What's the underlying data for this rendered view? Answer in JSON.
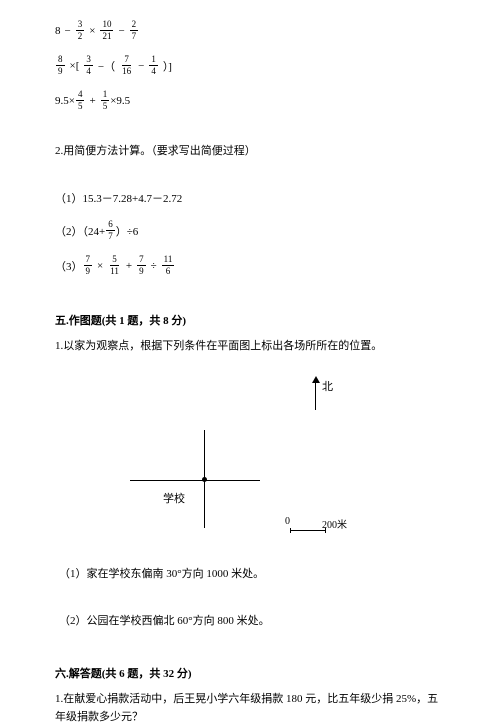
{
  "expressions": {
    "e1a": "8",
    "e1b": "−",
    "f1": {
      "n": "3",
      "d": "2"
    },
    "e1c": "×",
    "f2": {
      "n": "10",
      "d": "21"
    },
    "e1d": "−",
    "f3": {
      "n": "2",
      "d": "7"
    },
    "f4": {
      "n": "8",
      "d": "9"
    },
    "e2a": "×[ ",
    "f5": {
      "n": "3",
      "d": "4"
    },
    "e2b": "−（",
    "f6": {
      "n": "7",
      "d": "16"
    },
    "e2c": "−",
    "f7": {
      "n": "1",
      "d": "4"
    },
    "e2d": "）]",
    "e3a": "9.5×",
    "f8": {
      "n": "4",
      "d": "5"
    },
    "e3b": "+",
    "f9": {
      "n": "1",
      "d": "5"
    },
    "e3c": "×9.5"
  },
  "q2": {
    "title": "2.用简便方法计算。（要求写出简便过程）",
    "i1": "（1）15.3－7.28+4.7－2.72",
    "i2a": "（2）（24+",
    "f10": {
      "n": "6",
      "d": "7"
    },
    "i2b": "）÷6",
    "i3a": "（3）",
    "f11": {
      "n": "7",
      "d": "9"
    },
    "i3b": "×",
    "f12": {
      "n": "5",
      "d": "11"
    },
    "i3c": "+",
    "f13": {
      "n": "7",
      "d": "9"
    },
    "i3d": "÷",
    "f14": {
      "n": "11",
      "d": "6"
    }
  },
  "sec5": {
    "title": "五.作图题(共 1 题，共 8 分)",
    "q1": "1.以家为观察点，根据下列条件在平面图上标出各场所所在的位置。",
    "north": "北",
    "school": "学校",
    "scale0": "0",
    "scale200": "200米",
    "sub1": "（1）家在学校东偏南 30°方向 1000 米处。",
    "sub2": "（2）公园在学校西偏北 60°方向 800 米处。"
  },
  "sec6": {
    "title": "六.解答题(共 6 题，共 32 分)",
    "q1": "1.在献爱心捐款活动中，后王晃小学六年级捐款 180 元，比五年级少捐 25%，五年级捐款多少元？"
  },
  "colors": {
    "text": "#000000",
    "bg": "#ffffff"
  },
  "typography": {
    "body_fontsize": 11,
    "frac_fontsize": 9,
    "font_family": "SimSun"
  }
}
